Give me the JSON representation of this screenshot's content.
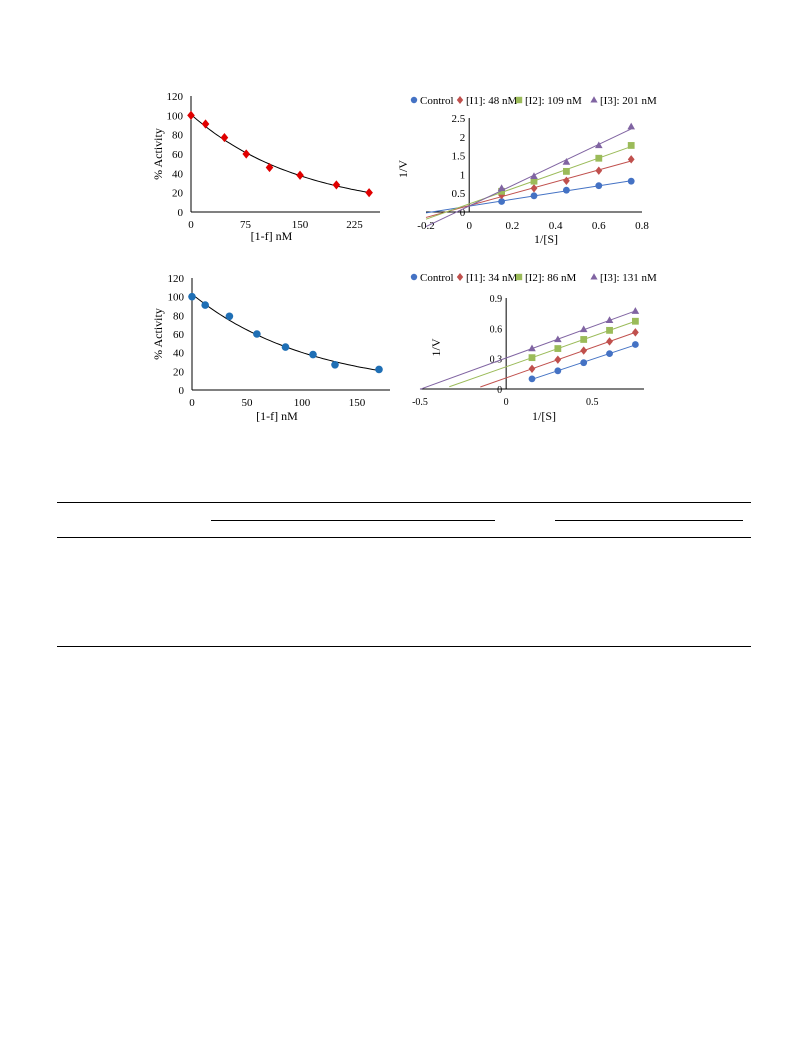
{
  "charts": [
    {
      "type": "scatter",
      "fit": "exponential",
      "x": [
        0,
        20,
        46,
        76,
        108,
        150,
        200,
        245
      ],
      "y": [
        100,
        91,
        77,
        60,
        46,
        38,
        28,
        20
      ],
      "xlabel": "[1-f] nM",
      "ylabel": "% Activity",
      "xlim": [
        0,
        260
      ],
      "ylim": [
        0,
        120
      ],
      "xticks": [
        "0",
        "75",
        "150",
        "225"
      ],
      "xtick_values": [
        0,
        75,
        150,
        225
      ],
      "yticks": [
        "0",
        "20",
        "40",
        "60",
        "80",
        "100",
        "120"
      ],
      "marker": "diamond",
      "color": "#e00000"
    },
    {
      "type": "scatter",
      "fit": "linear",
      "xlim": [
        -0.2,
        0.8
      ],
      "ylim": [
        0,
        2.5
      ],
      "xticks": [
        "-0.2",
        "0",
        "0.2",
        "0.4",
        "0.6",
        "0.8"
      ],
      "yticks": [
        "0",
        "0.5",
        "1",
        "1.5",
        "2",
        "2.5"
      ],
      "xlabel": "1/[S]",
      "ylabel": "1/V",
      "legend_position": "top",
      "series": [
        {
          "name": "Control",
          "marker": "circle",
          "color": "#4472c4",
          "x": [
            0.15,
            0.3,
            0.45,
            0.6,
            0.75
          ],
          "y": [
            0.28,
            0.43,
            0.58,
            0.7,
            0.82
          ],
          "fit_x": [
            -0.2,
            0.75
          ]
        },
        {
          "name": "[I1]: 48 nM",
          "marker": "diamond",
          "color": "#c0504d",
          "x": [
            0.15,
            0.3,
            0.45,
            0.6,
            0.75
          ],
          "y": [
            0.45,
            0.63,
            0.83,
            1.1,
            1.4
          ],
          "fit_x": [
            -0.2,
            0.75
          ]
        },
        {
          "name": "[I2]: 109 nM",
          "marker": "square",
          "color": "#9bbb59",
          "x": [
            0.15,
            0.3,
            0.45,
            0.6,
            0.75
          ],
          "y": [
            0.55,
            0.82,
            1.08,
            1.43,
            1.77
          ],
          "fit_x": [
            -0.2,
            0.75
          ]
        },
        {
          "name": "[I3]: 201 nM",
          "marker": "triangle",
          "color": "#8064a2",
          "x": [
            0.15,
            0.3,
            0.45,
            0.6,
            0.75
          ],
          "y": [
            0.63,
            0.95,
            1.33,
            1.77,
            2.27
          ],
          "fit_x": [
            -0.2,
            0.75
          ]
        }
      ]
    },
    {
      "type": "scatter",
      "fit": "exponential",
      "x": [
        0,
        12,
        34,
        59,
        85,
        110,
        130,
        170
      ],
      "y": [
        100,
        91,
        79,
        60,
        46,
        38,
        27,
        22
      ],
      "xlabel": "[1-f] nM",
      "ylabel": "% Activity",
      "xlim": [
        0,
        180
      ],
      "ylim": [
        0,
        120
      ],
      "xticks": [
        "0",
        "50",
        "100",
        "150"
      ],
      "xtick_values": [
        0,
        50,
        100,
        150
      ],
      "yticks": [
        "0",
        "20",
        "40",
        "60",
        "80",
        "100",
        "120"
      ],
      "marker": "circle",
      "color": "#1f6fb5"
    },
    {
      "type": "scatter",
      "fit": "linear",
      "xlim": [
        -0.5,
        0.8
      ],
      "ylim": [
        0,
        0.9
      ],
      "xticks": [
        "-0.5",
        "0",
        "0.5"
      ],
      "xtick_values": [
        -0.5,
        0,
        0.5
      ],
      "yticks": [
        "0",
        "0.3",
        "0.6",
        "0.9"
      ],
      "ytick_values": [
        0,
        0.3,
        0.6,
        0.9
      ],
      "xlabel": "1/[S]",
      "ylabel": "1/V",
      "legend_position": "top",
      "series": [
        {
          "name": "Control",
          "marker": "circle",
          "color": "#4472c4",
          "x": [
            0.15,
            0.3,
            0.45,
            0.6,
            0.75
          ],
          "y": [
            0.1,
            0.18,
            0.26,
            0.35,
            0.44
          ],
          "fit_x": [
            0.15,
            0.75
          ]
        },
        {
          "name": "[I1]: 34 nM",
          "marker": "diamond",
          "color": "#c0504d",
          "x": [
            0.15,
            0.3,
            0.45,
            0.6,
            0.75
          ],
          "y": [
            0.2,
            0.29,
            0.38,
            0.47,
            0.56
          ],
          "fit_x": [
            -0.15,
            0.75
          ]
        },
        {
          "name": "[I2]: 86 nM",
          "marker": "square",
          "color": "#9bbb59",
          "x": [
            0.15,
            0.3,
            0.45,
            0.6,
            0.75
          ],
          "y": [
            0.31,
            0.4,
            0.49,
            0.58,
            0.67
          ],
          "fit_x": [
            -0.33,
            0.75
          ]
        },
        {
          "name": "[I3]: 131 nM",
          "marker": "triangle",
          "color": "#8064a2",
          "x": [
            0.15,
            0.3,
            0.45,
            0.6,
            0.75
          ],
          "y": [
            0.4,
            0.49,
            0.59,
            0.68,
            0.77
          ],
          "fit_x": [
            -0.5,
            0.75
          ]
        }
      ]
    }
  ]
}
